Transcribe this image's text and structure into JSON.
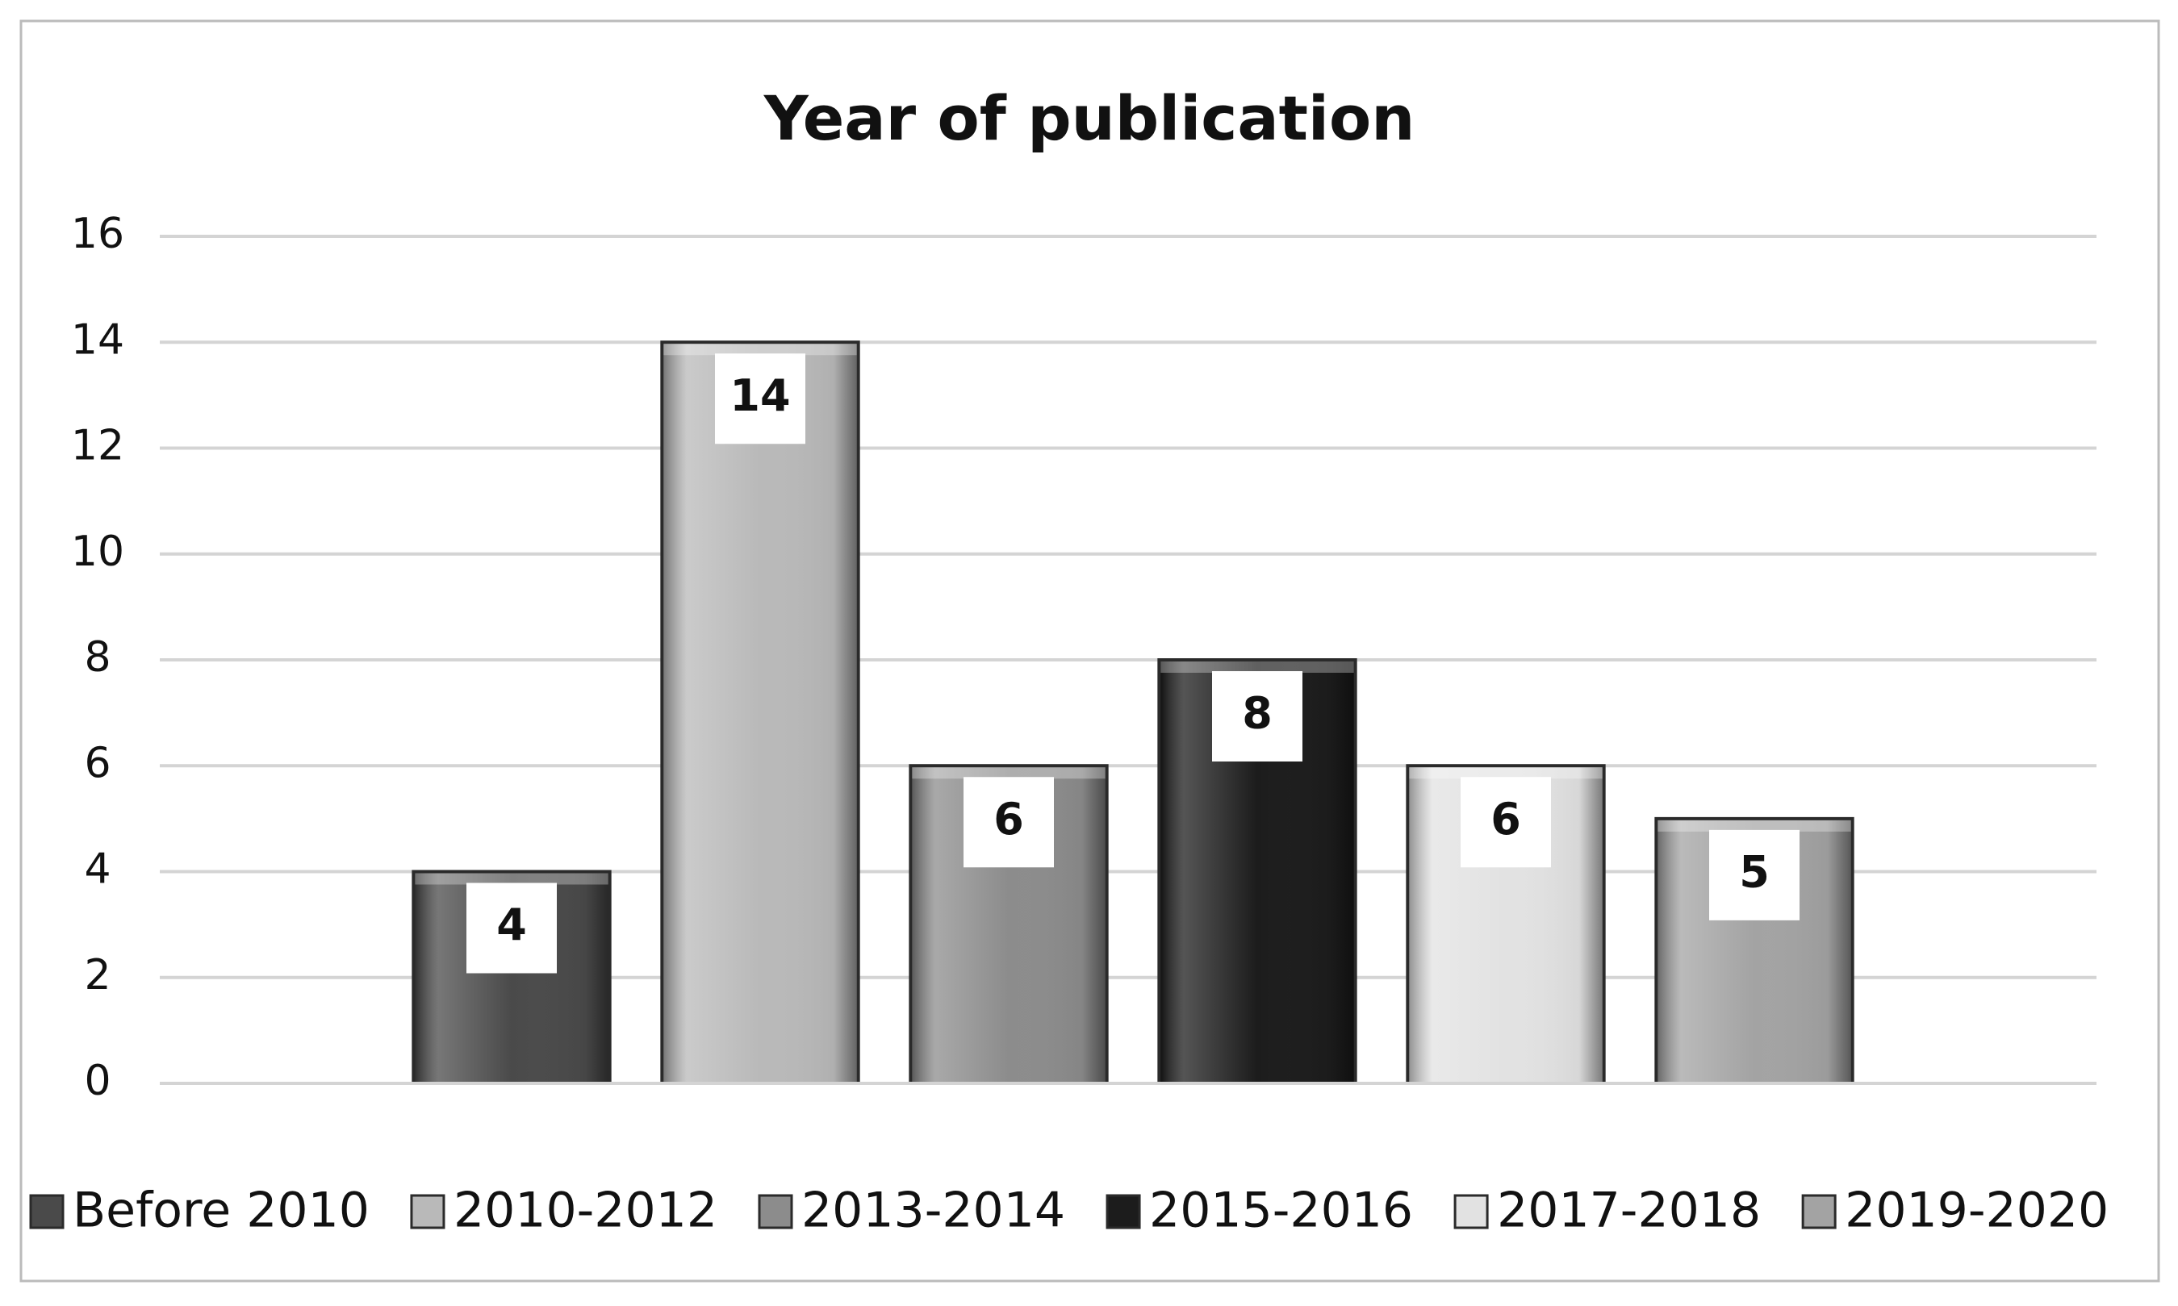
{
  "chart_data": {
    "type": "bar",
    "title": "Year of publication",
    "categories": [
      null
    ],
    "series": [
      {
        "name": "Before 2010",
        "color": "#4a4a4a",
        "values": [
          4
        ]
      },
      {
        "name": "2010-2012",
        "color": "#b9b9b9",
        "values": [
          14
        ]
      },
      {
        "name": "2013-2014",
        "color": "#8c8c8c",
        "values": [
          6
        ]
      },
      {
        "name": "2015-2016",
        "color": "#1c1c1c",
        "values": [
          8
        ]
      },
      {
        "name": "2017-2018",
        "color": "#e2e2e2",
        "values": [
          6
        ]
      },
      {
        "name": "2019-2020",
        "color": "#a3a3a3",
        "values": [
          5
        ]
      }
    ],
    "ylim": [
      0,
      16
    ],
    "yticks": [
      0,
      2,
      4,
      6,
      8,
      10,
      12,
      14,
      16
    ],
    "grid": true,
    "legend": "bottom"
  }
}
